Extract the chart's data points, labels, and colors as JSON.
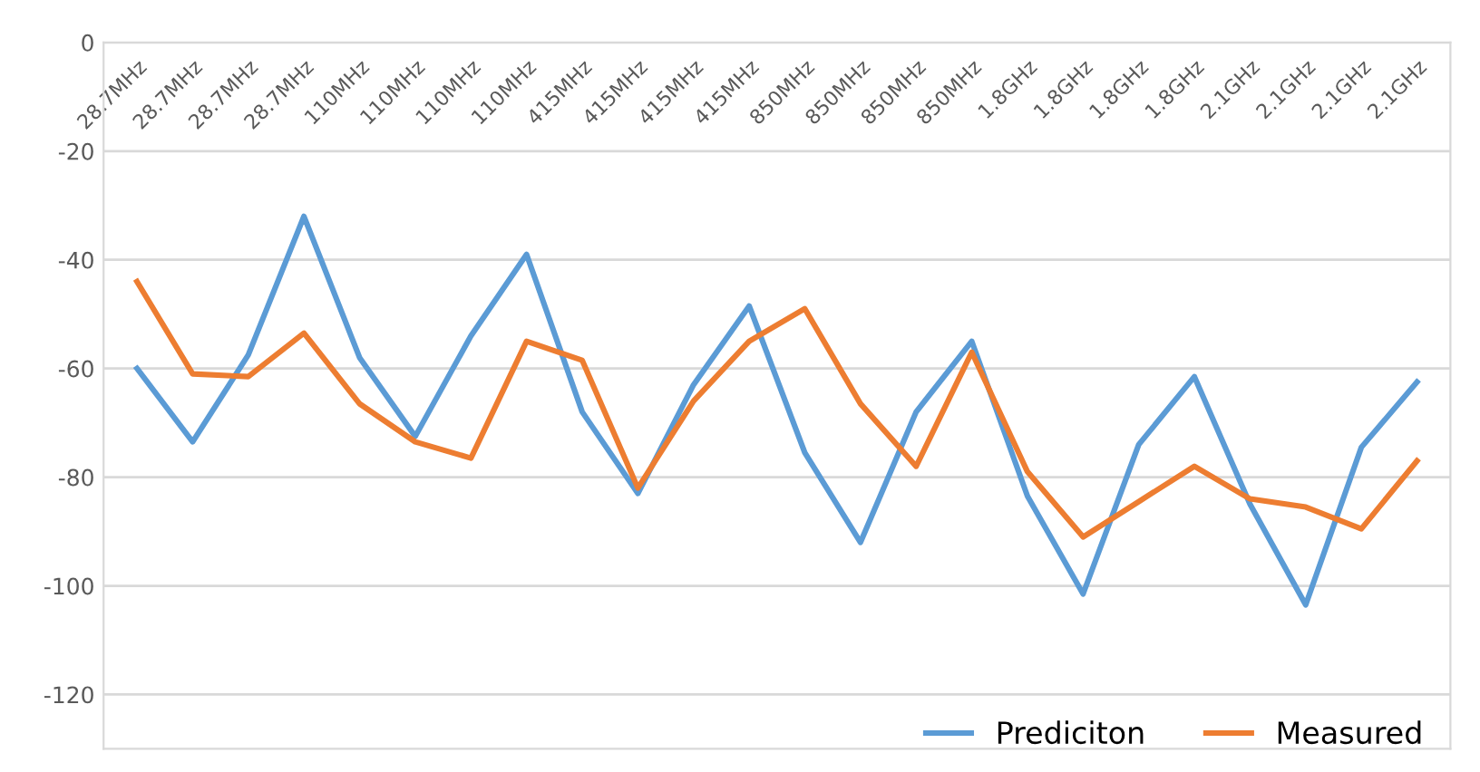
{
  "chart_data": {
    "type": "line",
    "categories": [
      "28.7MHz",
      "28.7MHz",
      "28.7MHz",
      "28.7MHz",
      "110MHz",
      "110MHz",
      "110MHz",
      "110MHz",
      "415MHz",
      "415MHz",
      "415MHz",
      "415MHz",
      "850MHz",
      "850MHz",
      "850MHz",
      "850MHz",
      "1.8GHz",
      "1.8GHz",
      "1.8GHz",
      "1.8GHz",
      "2.1GHz",
      "2.1GHz",
      "2.1GHz",
      "2.1GHz"
    ],
    "series": [
      {
        "name": "Prediciton",
        "color": "#5b9bd5",
        "values": [
          -60,
          -73.5,
          -57.5,
          -32,
          -58,
          -72.5,
          -54,
          -39,
          -68,
          -83,
          -63,
          -48.5,
          -75.5,
          -92,
          -68,
          -55,
          -83.5,
          -101.5,
          -74,
          -61.5,
          -85,
          -103.5,
          -74.5,
          -62.5
        ]
      },
      {
        "name": "Measured",
        "color": "#ed7d31",
        "values": [
          -44,
          -61,
          -61.5,
          -53.5,
          -66.5,
          -73.5,
          -76.5,
          -55,
          -58.5,
          -82,
          -66,
          -55,
          -49,
          -66.5,
          -78,
          -57,
          -79,
          -91,
          -84.5,
          -78,
          -84,
          -85.5,
          -89.5,
          -77
        ]
      }
    ],
    "ylim": [
      -130,
      0
    ],
    "yticks": [
      0,
      -20,
      -40,
      -60,
      -80,
      -100,
      -120
    ],
    "grid": "y",
    "legend": "bottom right",
    "marker": "none",
    "line_style": "solid"
  }
}
